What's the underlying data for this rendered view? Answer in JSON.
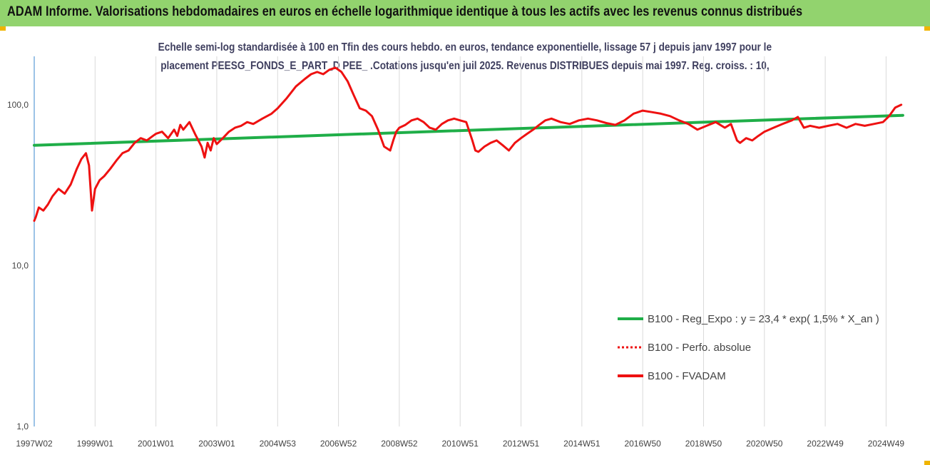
{
  "banner": {
    "title": "ADAM Informe. Valorisations hebdomadaires en euros en échelle logarithmique identique à tous les actifs avec les revenus connus distribués"
  },
  "colors": {
    "banner": "#92d36e",
    "trend": "#1fae48",
    "price": "#ee1111",
    "grid": "#d9d9d9",
    "axis": "#5b9bd5",
    "corner": "#f0b400"
  },
  "chart_data": {
    "type": "line",
    "subtitle_line1": "Echelle semi-log standardisée à 100 en Tfin des cours hebdo. en euros, tendance exponentielle, lissage 57 j depuis janv 1997 pour le",
    "subtitle_line2": "placement PEESG_FONDS_E_PART_D PEE_ .Cotations jusqu'en juil 2025. Revenus DISTRIBUES depuis mai 1997. Reg.  croiss. : 10,",
    "y_scale": "log",
    "ylim": [
      1,
      200
    ],
    "y_ticks": [
      {
        "value": 1,
        "label": "1,0"
      },
      {
        "value": 10,
        "label": "10,0"
      },
      {
        "value": 100,
        "label": "100,0"
      }
    ],
    "xlim": [
      1997.0,
      2025.6
    ],
    "x_ticks": [
      {
        "value": 1997.0,
        "label": "1997W02"
      },
      {
        "value": 1999.0,
        "label": "1999W01"
      },
      {
        "value": 2001.0,
        "label": "2001W01"
      },
      {
        "value": 2003.0,
        "label": "2003W01"
      },
      {
        "value": 2005.0,
        "label": "2004W53"
      },
      {
        "value": 2007.0,
        "label": "2006W52"
      },
      {
        "value": 2009.0,
        "label": "2008W52"
      },
      {
        "value": 2011.0,
        "label": "2010W51"
      },
      {
        "value": 2013.0,
        "label": "2012W51"
      },
      {
        "value": 2015.0,
        "label": "2014W51"
      },
      {
        "value": 2017.0,
        "label": "2016W50"
      },
      {
        "value": 2019.0,
        "label": "2018W50"
      },
      {
        "value": 2021.0,
        "label": "2020W50"
      },
      {
        "value": 2023.0,
        "label": "2022W49"
      },
      {
        "value": 2025.0,
        "label": "2024W49"
      }
    ],
    "grid": "vertical",
    "legend_position": "bottom-right",
    "series": [
      {
        "name": "B100 - Reg_Expo : y = 23,4 * exp( 1,5% *  X_an )",
        "style": "solid",
        "x": [
          1997.0,
          2025.55
        ],
        "y": [
          56,
          86
        ]
      },
      {
        "name": "B100 - Perfo. absolue",
        "style": "dotted",
        "x": [],
        "y": []
      },
      {
        "name": "B100 - FVADAM",
        "style": "solid",
        "x": [
          1997.0,
          1997.05,
          1997.15,
          1997.3,
          1997.45,
          1997.6,
          1997.8,
          1998.0,
          1998.2,
          1998.4,
          1998.55,
          1998.7,
          1998.8,
          1998.9,
          1999.0,
          1999.15,
          1999.3,
          1999.5,
          1999.7,
          1999.9,
          2000.1,
          2000.3,
          2000.5,
          2000.7,
          2000.9,
          2001.0,
          2001.2,
          2001.4,
          2001.6,
          2001.7,
          2001.8,
          2001.9,
          2002.1,
          2002.3,
          2002.5,
          2002.6,
          2002.7,
          2002.8,
          2002.9,
          2003.0,
          2003.2,
          2003.4,
          2003.6,
          2003.8,
          2004.0,
          2004.2,
          2004.5,
          2004.8,
          2005.0,
          2005.3,
          2005.6,
          2005.9,
          2006.1,
          2006.3,
          2006.5,
          2006.7,
          2006.9,
          2007.1,
          2007.3,
          2007.5,
          2007.7,
          2007.9,
          2008.1,
          2008.3,
          2008.5,
          2008.7,
          2008.8,
          2008.9,
          2009.0,
          2009.2,
          2009.4,
          2009.6,
          2009.8,
          2010.0,
          2010.2,
          2010.4,
          2010.6,
          2010.8,
          2011.0,
          2011.2,
          2011.4,
          2011.5,
          2011.6,
          2011.8,
          2012.0,
          2012.2,
          2012.4,
          2012.6,
          2012.8,
          2013.0,
          2013.2,
          2013.4,
          2013.6,
          2013.8,
          2014.0,
          2014.3,
          2014.6,
          2014.9,
          2015.2,
          2015.5,
          2015.8,
          2016.1,
          2016.4,
          2016.7,
          2017.0,
          2017.3,
          2017.6,
          2017.9,
          2018.2,
          2018.5,
          2018.8,
          2019.1,
          2019.4,
          2019.7,
          2019.9,
          2020.1,
          2020.2,
          2020.4,
          2020.6,
          2020.8,
          2021.0,
          2021.3,
          2021.6,
          2021.9,
          2022.1,
          2022.3,
          2022.5,
          2022.8,
          2023.1,
          2023.4,
          2023.7,
          2024.0,
          2024.3,
          2024.6,
          2024.9,
          2025.1,
          2025.3,
          2025.5
        ],
        "y": [
          19,
          20,
          23,
          22,
          24,
          27,
          30,
          28,
          32,
          40,
          46,
          50,
          42,
          22,
          30,
          34,
          36,
          40,
          45,
          50,
          52,
          58,
          62,
          60,
          64,
          66,
          68,
          62,
          70,
          64,
          75,
          70,
          78,
          65,
          55,
          47,
          58,
          52,
          62,
          57,
          62,
          68,
          72,
          74,
          78,
          76,
          82,
          88,
          95,
          110,
          130,
          145,
          155,
          160,
          155,
          165,
          170,
          160,
          140,
          115,
          95,
          92,
          85,
          70,
          55,
          52,
          60,
          68,
          72,
          75,
          80,
          82,
          78,
          72,
          70,
          76,
          80,
          82,
          80,
          78,
          60,
          52,
          51,
          55,
          58,
          60,
          56,
          52,
          58,
          62,
          66,
          70,
          75,
          80,
          82,
          78,
          76,
          80,
          82,
          80,
          77,
          75,
          80,
          88,
          92,
          90,
          88,
          85,
          80,
          76,
          70,
          74,
          78,
          72,
          76,
          60,
          58,
          62,
          60,
          64,
          68,
          72,
          76,
          80,
          84,
          72,
          74,
          72,
          74,
          76,
          72,
          76,
          74,
          76,
          78,
          85,
          96,
          100
        ]
      }
    ]
  }
}
